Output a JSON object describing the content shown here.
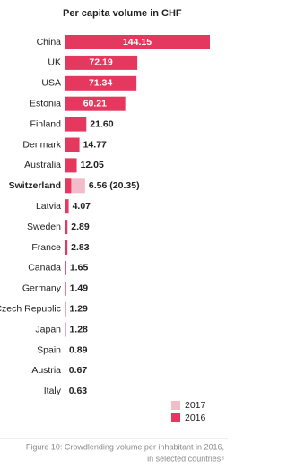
{
  "chart_data": {
    "type": "hbar",
    "title": "Per capita volume in CHF",
    "categories": [
      "China",
      "UK",
      "USA",
      "Estonia",
      "Finland",
      "Denmark",
      "Australia",
      "Switzerland",
      "Latvia",
      "Sweden",
      "France",
      "Canada",
      "Germany",
      "Czech Republic",
      "Japan",
      "Spain",
      "Austria",
      "Italy"
    ],
    "series": [
      {
        "name": "2017",
        "color": "#f3bccb",
        "values": [
          null,
          null,
          null,
          null,
          null,
          null,
          null,
          20.35,
          null,
          null,
          null,
          null,
          null,
          null,
          null,
          null,
          null,
          null
        ],
        "value_labels": [
          null,
          null,
          null,
          null,
          null,
          null,
          null,
          "(20.35)",
          null,
          null,
          null,
          null,
          null,
          null,
          null,
          null,
          null,
          null
        ]
      },
      {
        "name": "2016",
        "color": "#e5385f",
        "values": [
          144.15,
          72.19,
          71.34,
          60.21,
          21.6,
          14.77,
          12.05,
          6.56,
          4.07,
          2.89,
          2.83,
          1.65,
          1.49,
          1.29,
          1.28,
          0.89,
          0.67,
          0.63
        ],
        "value_labels": [
          "144.15",
          "72.19",
          "71.34",
          "60.21",
          "21.60",
          "14.77",
          "12.05",
          "6.56",
          "4.07",
          "2.89",
          "2.83",
          "1.65",
          "1.49",
          "1.29",
          "1.28",
          "0.89",
          "0.67",
          "0.63"
        ]
      }
    ],
    "highlight": "Switzerland",
    "caption": [
      "Figure 10: Crowdlending volume per inhabitant in 2016,",
      "in selected countries⁸"
    ]
  }
}
